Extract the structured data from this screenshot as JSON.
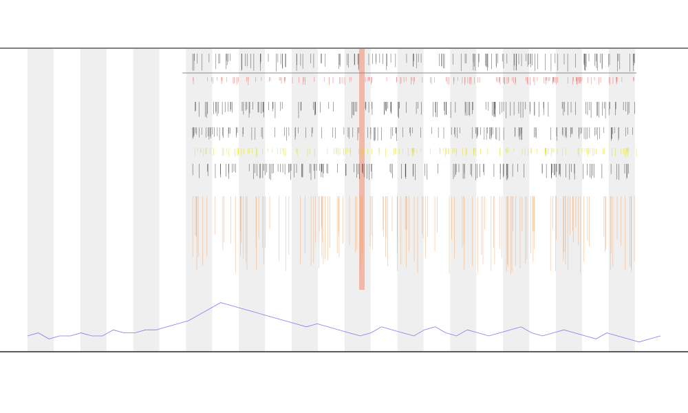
{
  "chart_data": {
    "type": "line",
    "categories": [
      null,
      null,
      null,
      null,
      null,
      null,
      null,
      null,
      null,
      null,
      null,
      null,
      null,
      null,
      null,
      null,
      null,
      null,
      null,
      null,
      null,
      null,
      null,
      null,
      null,
      null,
      null,
      null,
      null,
      null,
      null,
      null,
      null,
      null,
      null,
      null,
      null,
      null,
      null,
      null,
      null,
      null,
      null,
      null,
      null,
      null,
      null,
      null,
      null,
      null,
      null,
      null,
      null,
      null,
      null,
      null,
      null,
      null,
      null,
      null
    ],
    "series": [
      {
        "color": "#7b7bf0",
        "values": [
          5,
          6,
          4,
          5,
          5,
          6,
          5,
          5,
          7,
          6,
          6,
          7,
          7,
          8,
          9,
          10,
          12,
          14,
          16,
          15,
          14,
          13,
          12,
          11,
          10,
          9,
          8,
          9,
          8,
          7,
          6,
          5,
          6,
          8,
          7,
          6,
          5,
          7,
          8,
          6,
          5,
          7,
          6,
          5,
          6,
          7,
          8,
          6,
          5,
          6,
          7,
          6,
          5,
          4,
          6,
          5,
          4,
          3,
          4,
          5
        ]
      }
    ],
    "ylim": [
      0,
      100
    ]
  }
}
